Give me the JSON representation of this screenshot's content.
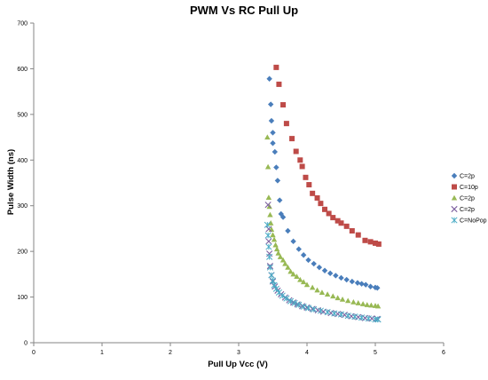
{
  "chart_data": {
    "type": "scatter",
    "title": "PWM Vs RC Pull Up",
    "xlabel": "Pull Up Vcc (V)",
    "ylabel": "Pulse Width (ns)",
    "xlim": [
      0,
      6
    ],
    "ylim": [
      0,
      700
    ],
    "xticks": [
      "0",
      "1",
      "2",
      "3",
      "4",
      "5",
      "6"
    ],
    "yticks": [
      "0",
      "100",
      "200",
      "300",
      "400",
      "500",
      "600",
      "700"
    ],
    "grid": false,
    "legend_position": "right",
    "series": [
      {
        "name": "C=2p",
        "marker": "diamond",
        "color": "#4a7ebb",
        "points": [
          [
            3.45,
            578
          ],
          [
            3.47,
            522
          ],
          [
            3.48,
            486
          ],
          [
            3.5,
            460
          ],
          [
            3.5,
            437
          ],
          [
            3.53,
            418
          ],
          [
            3.55,
            384
          ],
          [
            3.57,
            355
          ],
          [
            3.6,
            312
          ],
          [
            3.62,
            282
          ],
          [
            3.65,
            275
          ],
          [
            3.72,
            245
          ],
          [
            3.8,
            222
          ],
          [
            3.88,
            205
          ],
          [
            3.95,
            192
          ],
          [
            4.02,
            181
          ],
          [
            4.1,
            173
          ],
          [
            4.18,
            165
          ],
          [
            4.26,
            158
          ],
          [
            4.34,
            152
          ],
          [
            4.42,
            147
          ],
          [
            4.5,
            142
          ],
          [
            4.58,
            138
          ],
          [
            4.66,
            134
          ],
          [
            4.74,
            131
          ],
          [
            4.8,
            129
          ],
          [
            4.86,
            127
          ],
          [
            4.93,
            123
          ],
          [
            5.0,
            121
          ],
          [
            5.03,
            120
          ]
        ]
      },
      {
        "name": "C=10p",
        "marker": "square",
        "color": "#be4b48",
        "points": [
          [
            3.55,
            603
          ],
          [
            3.59,
            566
          ],
          [
            3.65,
            521
          ],
          [
            3.7,
            480
          ],
          [
            3.78,
            447
          ],
          [
            3.84,
            419
          ],
          [
            3.9,
            400
          ],
          [
            3.93,
            386
          ],
          [
            3.98,
            362
          ],
          [
            4.03,
            346
          ],
          [
            4.08,
            327
          ],
          [
            4.15,
            317
          ],
          [
            4.2,
            305
          ],
          [
            4.26,
            292
          ],
          [
            4.32,
            283
          ],
          [
            4.38,
            274
          ],
          [
            4.45,
            267
          ],
          [
            4.5,
            262
          ],
          [
            4.58,
            255
          ],
          [
            4.66,
            245
          ],
          [
            4.75,
            236
          ],
          [
            4.85,
            224
          ],
          [
            4.93,
            221
          ],
          [
            5.0,
            218
          ],
          [
            5.05,
            216
          ]
        ]
      },
      {
        "name": "C=2p",
        "marker": "triangle",
        "color": "#98b954",
        "points": [
          [
            3.42,
            450
          ],
          [
            3.43,
            385
          ],
          [
            3.44,
            318
          ],
          [
            3.45,
            298
          ],
          [
            3.46,
            280
          ],
          [
            3.47,
            262
          ],
          [
            3.48,
            248
          ],
          [
            3.5,
            236
          ],
          [
            3.52,
            226
          ],
          [
            3.54,
            214
          ],
          [
            3.56,
            205
          ],
          [
            3.58,
            196
          ],
          [
            3.61,
            188
          ],
          [
            3.65,
            181
          ],
          [
            3.68,
            173
          ],
          [
            3.72,
            165
          ],
          [
            3.76,
            156
          ],
          [
            3.8,
            150
          ],
          [
            3.85,
            145
          ],
          [
            3.9,
            138
          ],
          [
            3.95,
            133
          ],
          [
            4.0,
            127
          ],
          [
            4.08,
            121
          ],
          [
            4.15,
            115
          ],
          [
            4.22,
            110
          ],
          [
            4.3,
            106
          ],
          [
            4.38,
            102
          ],
          [
            4.45,
            98
          ],
          [
            4.52,
            95
          ],
          [
            4.6,
            92
          ],
          [
            4.68,
            89
          ],
          [
            4.75,
            87
          ],
          [
            4.82,
            85
          ],
          [
            4.88,
            83
          ],
          [
            4.94,
            82
          ],
          [
            5.0,
            81
          ],
          [
            5.04,
            80
          ]
        ]
      },
      {
        "name": "C=2p",
        "marker": "x",
        "color": "#7d60a0",
        "points": [
          [
            3.43,
            302
          ],
          [
            3.44,
            249
          ],
          [
            3.44,
            222
          ],
          [
            3.45,
            195
          ],
          [
            3.46,
            168
          ],
          [
            3.48,
            148
          ],
          [
            3.5,
            134
          ],
          [
            3.53,
            123
          ],
          [
            3.57,
            114
          ],
          [
            3.62,
            106
          ],
          [
            3.68,
            99
          ],
          [
            3.74,
            93
          ],
          [
            3.8,
            88
          ],
          [
            3.86,
            84
          ],
          [
            3.93,
            80
          ],
          [
            4.0,
            77
          ],
          [
            4.08,
            74
          ],
          [
            4.16,
            71
          ],
          [
            4.24,
            68
          ],
          [
            4.35,
            65
          ],
          [
            4.45,
            63
          ],
          [
            4.55,
            61
          ],
          [
            4.65,
            58
          ],
          [
            4.75,
            56
          ],
          [
            4.85,
            54
          ],
          [
            4.95,
            53
          ],
          [
            5.03,
            52
          ]
        ]
      },
      {
        "name": "C=NoPop",
        "marker": "star",
        "color": "#4bacc6",
        "points": [
          [
            3.42,
            258
          ],
          [
            3.43,
            235
          ],
          [
            3.44,
            210
          ],
          [
            3.45,
            188
          ],
          [
            3.46,
            165
          ],
          [
            3.48,
            148
          ],
          [
            3.5,
            136
          ],
          [
            3.52,
            126
          ],
          [
            3.55,
            118
          ],
          [
            3.59,
            110
          ],
          [
            3.64,
            103
          ],
          [
            3.7,
            97
          ],
          [
            3.76,
            91
          ],
          [
            3.82,
            87
          ],
          [
            3.88,
            83
          ],
          [
            3.95,
            79
          ],
          [
            4.02,
            76
          ],
          [
            4.1,
            73
          ],
          [
            4.2,
            70
          ],
          [
            4.3,
            67
          ],
          [
            4.4,
            64
          ],
          [
            4.5,
            62
          ],
          [
            4.6,
            59
          ],
          [
            4.7,
            57
          ],
          [
            4.8,
            55
          ],
          [
            4.9,
            53
          ],
          [
            5.0,
            51
          ],
          [
            5.04,
            51
          ]
        ]
      }
    ]
  }
}
